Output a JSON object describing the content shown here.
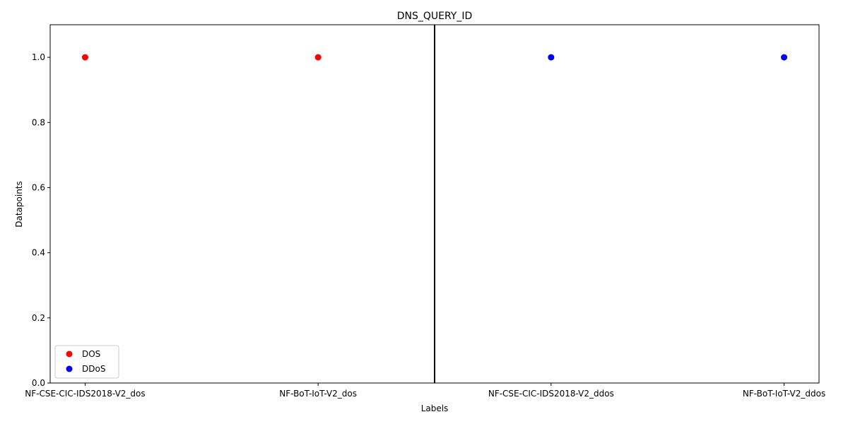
{
  "chart_data": {
    "type": "scatter",
    "title": "DNS_QUERY_ID",
    "xlabel": "Labels",
    "ylabel": "Datapoints",
    "categories": [
      "NF-CSE-CIC-IDS2018-V2_dos",
      "NF-BoT-IoT-V2_dos",
      "NF-CSE-CIC-IDS2018-V2_ddos",
      "NF-BoT-IoT-V2_ddos"
    ],
    "ylim": [
      0,
      1.1
    ],
    "yticks": [
      "0.0",
      "0.2",
      "0.4",
      "0.6",
      "0.8",
      "1.0"
    ],
    "separator_between_categories": [
      1,
      2
    ],
    "grid": false,
    "legend_position": "lower-left",
    "series": [
      {
        "name": "DOS",
        "color": "#ff0000",
        "points": [
          {
            "x": "NF-CSE-CIC-IDS2018-V2_dos",
            "y": 1.0
          },
          {
            "x": "NF-BoT-IoT-V2_dos",
            "y": 1.0
          }
        ]
      },
      {
        "name": "DDoS",
        "color": "#0000ff",
        "points": [
          {
            "x": "NF-CSE-CIC-IDS2018-V2_ddos",
            "y": 1.0
          },
          {
            "x": "NF-BoT-IoT-V2_ddos",
            "y": 1.0
          }
        ]
      }
    ]
  }
}
